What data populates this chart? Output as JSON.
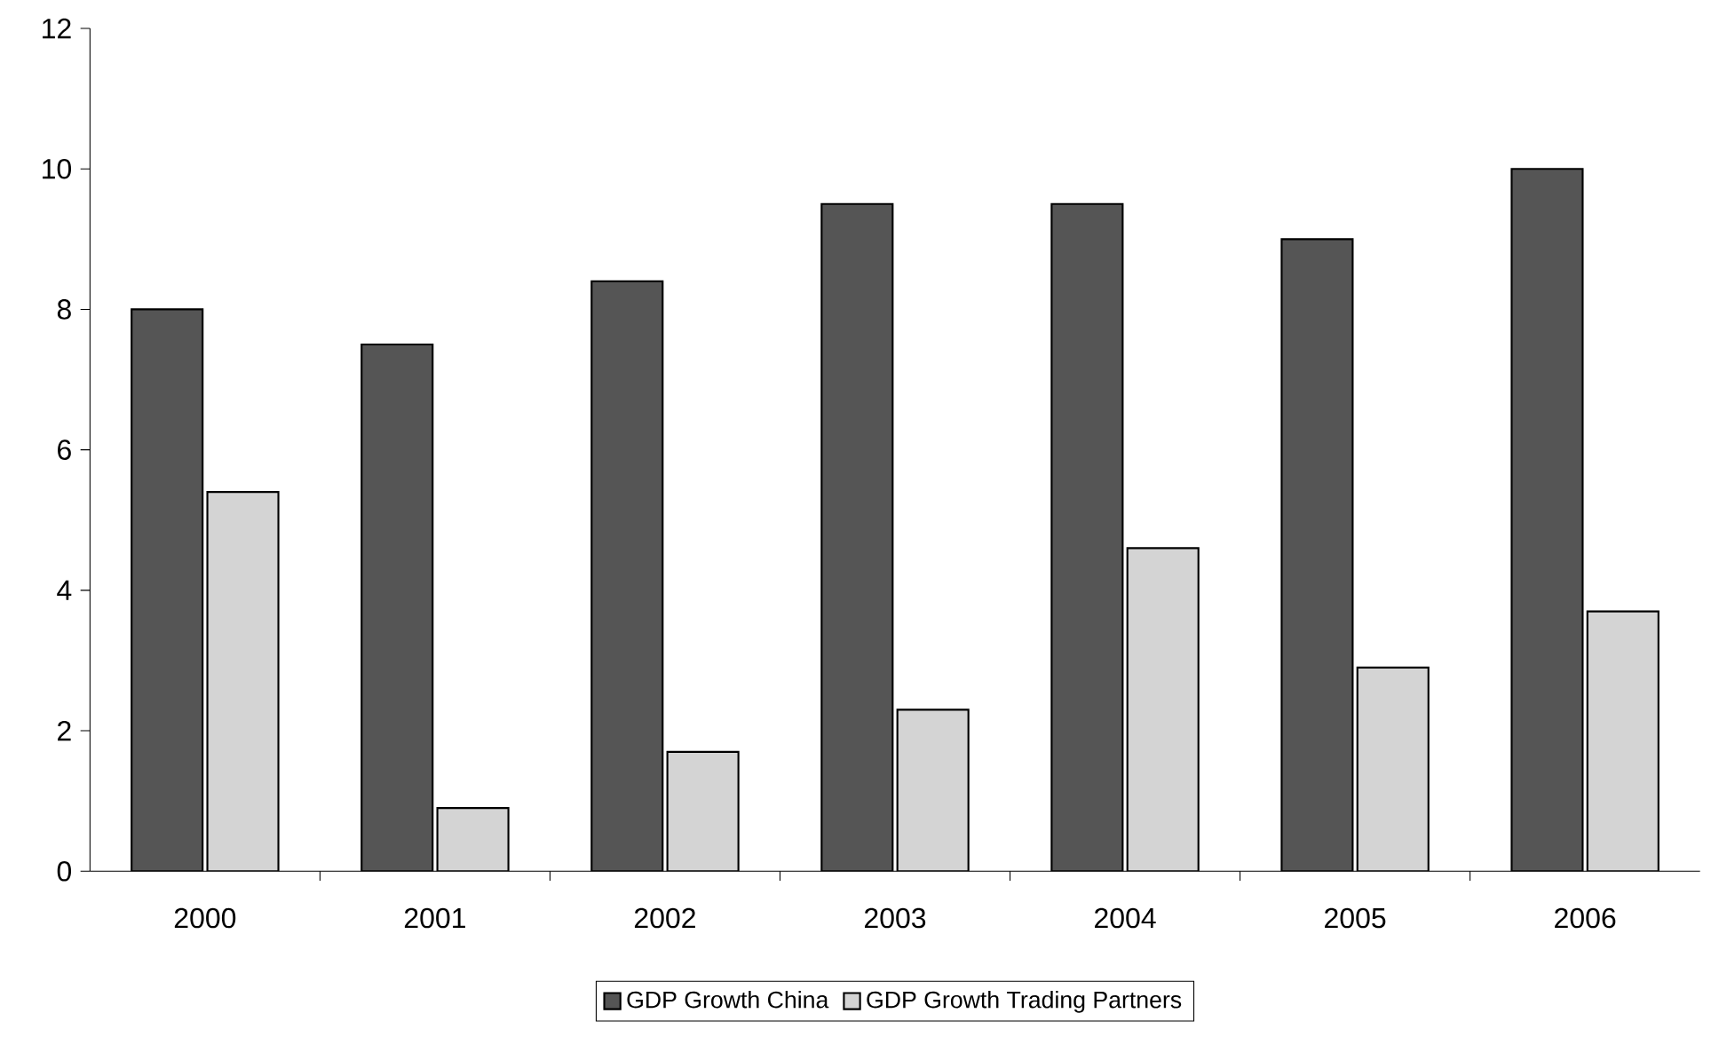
{
  "chart_data": {
    "type": "bar",
    "categories": [
      "2000",
      "2001",
      "2002",
      "2003",
      "2004",
      "2005",
      "2006"
    ],
    "series": [
      {
        "name": "GDP Growth China",
        "color": "#555555",
        "values": [
          8.0,
          7.5,
          8.4,
          9.5,
          9.5,
          9.0,
          10.0
        ]
      },
      {
        "name": "GDP Growth Trading Partners",
        "color": "#d4d4d4",
        "values": [
          5.4,
          0.9,
          1.7,
          2.3,
          4.6,
          2.9,
          3.7
        ]
      }
    ],
    "ylim": [
      0,
      12
    ],
    "yticks": [
      0,
      2,
      4,
      6,
      8,
      10,
      12
    ],
    "grid": false,
    "legend": "bottom"
  }
}
